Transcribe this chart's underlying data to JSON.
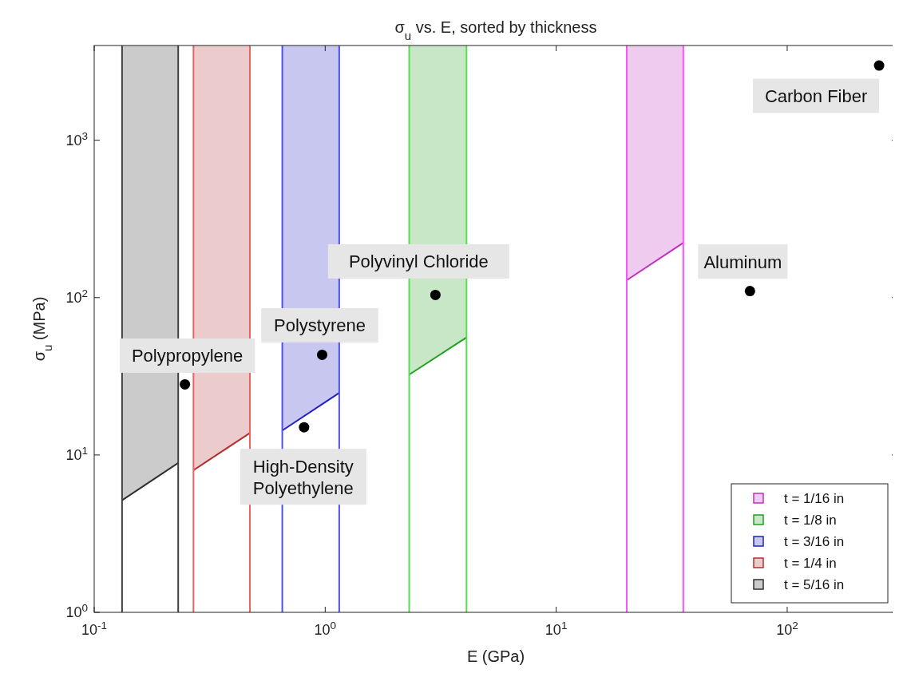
{
  "chart_data": {
    "type": "line",
    "title": "σ$_{u}$ vs. E, sorted by thickness",
    "xlabel": "E (GPa)",
    "ylabel": "σ$_{u}$ (MPa)",
    "log": "xy",
    "xlim": [
      0.1,
      300
    ],
    "ylim": [
      1,
      4000
    ],
    "xticks": [
      {
        "value": 0.1,
        "label": "10$^{-1}$"
      },
      {
        "value": 1,
        "label": "10$^{0}$"
      },
      {
        "value": 10,
        "label": "10$^{1}$"
      },
      {
        "value": 100,
        "label": "10$^{2}$"
      }
    ],
    "yticks": [
      {
        "value": 1,
        "label": "10$^{0}$"
      },
      {
        "value": 10,
        "label": "10$^{1}$"
      },
      {
        "value": 100,
        "label": "10$^{2}$"
      },
      {
        "value": 1000,
        "label": "10$^{3}$"
      }
    ],
    "legend": "bottom right",
    "series": [
      {
        "name": "t = 1/16 in",
        "color": "#c030c0",
        "x": [
          20.2,
          35.5
        ],
        "values": [
          129,
          223
        ],
        "lower": [
          129,
          223
        ],
        "upper": [
          4000,
          4000
        ]
      },
      {
        "name": "t = 1/8 in",
        "color": "#20a020",
        "x": [
          2.31,
          4.09
        ],
        "values": [
          32.4,
          55.9
        ],
        "lower": [
          32.4,
          55.9
        ],
        "upper": [
          4000,
          4000
        ]
      },
      {
        "name": "t = 3/16 in",
        "color": "#2020c0",
        "x": [
          0.652,
          1.15
        ],
        "values": [
          14.3,
          24.8
        ],
        "lower": [
          14.3,
          24.8
        ],
        "upper": [
          4000,
          4000
        ]
      },
      {
        "name": "t = 1/4 in",
        "color": "#b03030",
        "x": [
          0.269,
          0.472
        ],
        "values": [
          8.0,
          13.8
        ],
        "lower": [
          8.0,
          13.8
        ],
        "upper": [
          4000,
          4000
        ]
      },
      {
        "name": "t = 5/16 in",
        "color": "#303030",
        "x": [
          0.132,
          0.231
        ],
        "values": [
          5.15,
          8.9
        ],
        "lower": [
          5.15,
          8.9
        ],
        "upper": [
          4000,
          4000
        ]
      },
      {
        "type": "scatter",
        "color": "#000000",
        "marker": "circle",
        "x": [
          0.247,
          0.97,
          0.81,
          3.0,
          69,
          250
        ],
        "values": [
          28.1,
          43.3,
          15.0,
          104,
          110,
          2985
        ]
      }
    ],
    "ref_lines": [
      {
        "axis": "x",
        "value": 20.2,
        "color": "#ff50ff"
      },
      {
        "axis": "x",
        "value": 35.5,
        "color": "#ff50ff"
      },
      {
        "axis": "x",
        "value": 2.31,
        "color": "#50e050"
      },
      {
        "axis": "x",
        "value": 4.09,
        "color": "#50e050"
      },
      {
        "axis": "x",
        "value": 0.652,
        "color": "#5050f0"
      },
      {
        "axis": "x",
        "value": 1.15,
        "color": "#5050f0"
      },
      {
        "axis": "x",
        "value": 0.269,
        "color": "#f06060"
      },
      {
        "axis": "x",
        "value": 0.472,
        "color": "#f06060"
      },
      {
        "axis": "x",
        "value": 0.132,
        "color": "#404040"
      },
      {
        "axis": "x",
        "value": 0.231,
        "color": "#404040"
      }
    ],
    "annotations": [
      {
        "text": "Polypropylene",
        "x": 0.247,
        "y": 28.1
      },
      {
        "text": "Polystyrene",
        "x": 0.97,
        "y": 43.3
      },
      {
        "text": "High-Density\nPolyethylene",
        "x": 0.81,
        "y": 15.0
      },
      {
        "text": "Polyvinyl Chloride",
        "x": 3.0,
        "y": 104
      },
      {
        "text": "Aluminum",
        "x": 69,
        "y": 110
      },
      {
        "text": "Carbon Fiber",
        "x": 250,
        "y": 2985
      }
    ]
  }
}
